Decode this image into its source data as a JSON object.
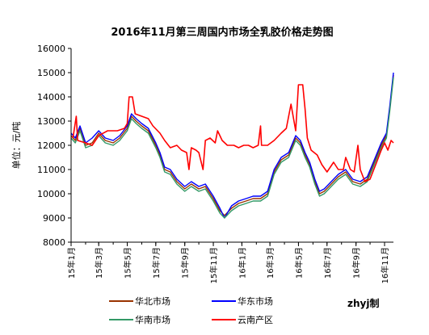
{
  "chart_data": {
    "type": "line",
    "title": "2016年11月第三周国内市场全乳胶价格走势图",
    "ylabel": "单位：元/吨",
    "xlabel": "",
    "ylim": [
      8000,
      16000
    ],
    "y_ticks": [
      "16000",
      "15000",
      "14000",
      "13000",
      "12000",
      "11000",
      "10000",
      "9000",
      "8000"
    ],
    "x_ticks": [
      "15年1月",
      "15年3月",
      "15年5月",
      "15年7月",
      "15年9月",
      "15年11月",
      "16年1月",
      "16年3月",
      "16年5月",
      "16年7月",
      "16年9月",
      "16年11月"
    ],
    "x_months": [
      "2015-01",
      "2015-03",
      "2015-05",
      "2015-07",
      "2015-09",
      "2015-11",
      "2016-01",
      "2016-03",
      "2016-05",
      "2016-07",
      "2016-09",
      "2016-11"
    ],
    "x_range": [
      "2015-01-01",
      "2016-11-20"
    ],
    "legend_position": "bottom",
    "watermark": "zhyj制",
    "grid": false,
    "series": [
      {
        "name": "华北市场",
        "color": "#993300",
        "points": [
          [
            "2015-01-01",
            12400
          ],
          [
            "2015-01-10",
            12200
          ],
          [
            "2015-01-20",
            12700
          ],
          [
            "2015-02-01",
            12000
          ],
          [
            "2015-02-15",
            12100
          ],
          [
            "2015-03-01",
            12500
          ],
          [
            "2015-03-15",
            12200
          ],
          [
            "2015-04-01",
            12100
          ],
          [
            "2015-04-15",
            12300
          ],
          [
            "2015-05-01",
            12700
          ],
          [
            "2015-05-10",
            13200
          ],
          [
            "2015-05-20",
            13000
          ],
          [
            "2015-06-01",
            12800
          ],
          [
            "2015-06-15",
            12600
          ],
          [
            "2015-07-01",
            12000
          ],
          [
            "2015-07-10",
            11600
          ],
          [
            "2015-07-20",
            11000
          ],
          [
            "2015-08-01",
            10900
          ],
          [
            "2015-08-15",
            10500
          ],
          [
            "2015-09-01",
            10200
          ],
          [
            "2015-09-15",
            10400
          ],
          [
            "2015-10-01",
            10200
          ],
          [
            "2015-10-15",
            10300
          ],
          [
            "2015-11-01",
            9800
          ],
          [
            "2015-11-15",
            9300
          ],
          [
            "2015-11-25",
            9100
          ],
          [
            "2015-12-10",
            9400
          ],
          [
            "2015-12-25",
            9600
          ],
          [
            "2016-01-10",
            9700
          ],
          [
            "2016-01-25",
            9800
          ],
          [
            "2016-02-10",
            9800
          ],
          [
            "2016-02-25",
            10000
          ],
          [
            "2016-03-10",
            10900
          ],
          [
            "2016-03-25",
            11400
          ],
          [
            "2016-04-10",
            11600
          ],
          [
            "2016-04-25",
            12300
          ],
          [
            "2016-05-05",
            12100
          ],
          [
            "2016-05-15",
            11600
          ],
          [
            "2016-05-25",
            11200
          ],
          [
            "2016-06-05",
            10500
          ],
          [
            "2016-06-15",
            10000
          ],
          [
            "2016-06-25",
            10100
          ],
          [
            "2016-07-10",
            10400
          ],
          [
            "2016-07-25",
            10700
          ],
          [
            "2016-08-10",
            10900
          ],
          [
            "2016-08-25",
            10500
          ],
          [
            "2016-09-10",
            10400
          ],
          [
            "2016-09-25",
            10600
          ],
          [
            "2016-10-10",
            11300
          ],
          [
            "2016-10-25",
            12000
          ],
          [
            "2016-11-05",
            12400
          ],
          [
            "2016-11-12",
            13500
          ],
          [
            "2016-11-20",
            14900
          ]
        ]
      },
      {
        "name": "华东市场",
        "color": "#0000ff",
        "points": [
          [
            "2015-01-01",
            12500
          ],
          [
            "2015-01-10",
            12300
          ],
          [
            "2015-01-20",
            12800
          ],
          [
            "2015-02-01",
            12100
          ],
          [
            "2015-02-15",
            12300
          ],
          [
            "2015-03-01",
            12600
          ],
          [
            "2015-03-15",
            12300
          ],
          [
            "2015-04-01",
            12200
          ],
          [
            "2015-04-15",
            12400
          ],
          [
            "2015-05-01",
            12800
          ],
          [
            "2015-05-10",
            13300
          ],
          [
            "2015-05-20",
            13100
          ],
          [
            "2015-06-01",
            12900
          ],
          [
            "2015-06-15",
            12700
          ],
          [
            "2015-07-01",
            12100
          ],
          [
            "2015-07-10",
            11700
          ],
          [
            "2015-07-20",
            11100
          ],
          [
            "2015-08-01",
            11000
          ],
          [
            "2015-08-15",
            10600
          ],
          [
            "2015-09-01",
            10300
          ],
          [
            "2015-09-15",
            10500
          ],
          [
            "2015-10-01",
            10300
          ],
          [
            "2015-10-15",
            10400
          ],
          [
            "2015-11-01",
            9900
          ],
          [
            "2015-11-15",
            9400
          ],
          [
            "2015-11-25",
            9000
          ],
          [
            "2015-12-10",
            9500
          ],
          [
            "2015-12-25",
            9700
          ],
          [
            "2016-01-10",
            9800
          ],
          [
            "2016-01-25",
            9900
          ],
          [
            "2016-02-10",
            9900
          ],
          [
            "2016-02-25",
            10100
          ],
          [
            "2016-03-10",
            11000
          ],
          [
            "2016-03-25",
            11500
          ],
          [
            "2016-04-10",
            11700
          ],
          [
            "2016-04-25",
            12400
          ],
          [
            "2016-05-05",
            12200
          ],
          [
            "2016-05-15",
            11700
          ],
          [
            "2016-05-25",
            11300
          ],
          [
            "2016-06-05",
            10600
          ],
          [
            "2016-06-15",
            10100
          ],
          [
            "2016-06-25",
            10200
          ],
          [
            "2016-07-10",
            10500
          ],
          [
            "2016-07-25",
            10800
          ],
          [
            "2016-08-10",
            11000
          ],
          [
            "2016-08-25",
            10600
          ],
          [
            "2016-09-10",
            10500
          ],
          [
            "2016-09-25",
            10700
          ],
          [
            "2016-10-10",
            11400
          ],
          [
            "2016-10-25",
            12100
          ],
          [
            "2016-11-05",
            12500
          ],
          [
            "2016-11-12",
            13600
          ],
          [
            "2016-11-20",
            15000
          ]
        ]
      },
      {
        "name": "华南市场",
        "color": "#339966",
        "points": [
          [
            "2015-01-01",
            12300
          ],
          [
            "2015-01-10",
            12100
          ],
          [
            "2015-01-20",
            12600
          ],
          [
            "2015-02-01",
            11900
          ],
          [
            "2015-02-15",
            12000
          ],
          [
            "2015-03-01",
            12400
          ],
          [
            "2015-03-15",
            12100
          ],
          [
            "2015-04-01",
            12000
          ],
          [
            "2015-04-15",
            12200
          ],
          [
            "2015-05-01",
            12600
          ],
          [
            "2015-05-10",
            13100
          ],
          [
            "2015-05-20",
            12900
          ],
          [
            "2015-06-01",
            12700
          ],
          [
            "2015-06-15",
            12500
          ],
          [
            "2015-07-01",
            11900
          ],
          [
            "2015-07-10",
            11500
          ],
          [
            "2015-07-20",
            10900
          ],
          [
            "2015-08-01",
            10800
          ],
          [
            "2015-08-15",
            10400
          ],
          [
            "2015-09-01",
            10100
          ],
          [
            "2015-09-15",
            10300
          ],
          [
            "2015-10-01",
            10100
          ],
          [
            "2015-10-15",
            10200
          ],
          [
            "2015-11-01",
            9700
          ],
          [
            "2015-11-15",
            9200
          ],
          [
            "2015-11-25",
            9000
          ],
          [
            "2015-12-10",
            9300
          ],
          [
            "2015-12-25",
            9500
          ],
          [
            "2016-01-10",
            9600
          ],
          [
            "2016-01-25",
            9700
          ],
          [
            "2016-02-10",
            9700
          ],
          [
            "2016-02-25",
            9900
          ],
          [
            "2016-03-10",
            10800
          ],
          [
            "2016-03-25",
            11300
          ],
          [
            "2016-04-10",
            11500
          ],
          [
            "2016-04-25",
            12200
          ],
          [
            "2016-05-05",
            12000
          ],
          [
            "2016-05-15",
            11500
          ],
          [
            "2016-05-25",
            11100
          ],
          [
            "2016-06-05",
            10400
          ],
          [
            "2016-06-15",
            9900
          ],
          [
            "2016-06-25",
            10000
          ],
          [
            "2016-07-10",
            10300
          ],
          [
            "2016-07-25",
            10600
          ],
          [
            "2016-08-10",
            10800
          ],
          [
            "2016-08-25",
            10400
          ],
          [
            "2016-09-10",
            10300
          ],
          [
            "2016-09-25",
            10500
          ],
          [
            "2016-10-10",
            11200
          ],
          [
            "2016-10-25",
            11900
          ],
          [
            "2016-11-05",
            12300
          ],
          [
            "2016-11-12",
            13400
          ],
          [
            "2016-11-20",
            14800
          ]
        ]
      },
      {
        "name": "云南产区",
        "color": "#ff0000",
        "points": [
          [
            "2015-01-05",
            12300
          ],
          [
            "2015-01-12",
            13200
          ],
          [
            "2015-01-15",
            12200
          ],
          [
            "2015-02-01",
            12100
          ],
          [
            "2015-02-15",
            12000
          ],
          [
            "2015-03-01",
            12400
          ],
          [
            "2015-03-20",
            12600
          ],
          [
            "2015-04-10",
            12600
          ],
          [
            "2015-04-25",
            12700
          ],
          [
            "2015-05-01",
            12900
          ],
          [
            "2015-05-05",
            14000
          ],
          [
            "2015-05-12",
            14000
          ],
          [
            "2015-05-18",
            13300
          ],
          [
            "2015-06-01",
            13200
          ],
          [
            "2015-06-15",
            13100
          ],
          [
            "2015-06-25",
            12800
          ],
          [
            "2015-07-10",
            12500
          ],
          [
            "2015-07-20",
            12200
          ],
          [
            "2015-08-01",
            11900
          ],
          [
            "2015-08-15",
            12000
          ],
          [
            "2015-08-25",
            11800
          ],
          [
            "2015-09-05",
            11700
          ],
          [
            "2015-09-10",
            11000
          ],
          [
            "2015-09-15",
            11900
          ],
          [
            "2015-09-25",
            11800
          ],
          [
            "2015-10-01",
            11700
          ],
          [
            "2015-10-10",
            11000
          ],
          [
            "2015-10-15",
            12200
          ],
          [
            "2015-10-25",
            12300
          ],
          [
            "2015-11-05",
            12100
          ],
          [
            "2015-11-10",
            12600
          ],
          [
            "2015-11-20",
            12200
          ],
          [
            "2015-12-01",
            12000
          ],
          [
            "2015-12-15",
            12000
          ],
          [
            "2015-12-25",
            11900
          ],
          [
            "2016-01-05",
            12000
          ],
          [
            "2016-01-15",
            12000
          ],
          [
            "2016-01-25",
            11900
          ],
          [
            "2016-02-05",
            12000
          ],
          [
            "2016-02-10",
            12800
          ],
          [
            "2016-02-12",
            12000
          ],
          [
            "2016-02-25",
            12000
          ],
          [
            "2016-03-10",
            12200
          ],
          [
            "2016-03-25",
            12500
          ],
          [
            "2016-04-05",
            12700
          ],
          [
            "2016-04-15",
            13700
          ],
          [
            "2016-04-25",
            12600
          ],
          [
            "2016-05-01",
            14500
          ],
          [
            "2016-05-10",
            14500
          ],
          [
            "2016-05-15",
            13500
          ],
          [
            "2016-05-20",
            12300
          ],
          [
            "2016-05-28",
            11800
          ],
          [
            "2016-06-10",
            11600
          ],
          [
            "2016-06-20",
            11200
          ],
          [
            "2016-07-01",
            10900
          ],
          [
            "2016-07-15",
            11300
          ],
          [
            "2016-07-25",
            11000
          ],
          [
            "2016-08-05",
            11000
          ],
          [
            "2016-08-10",
            11500
          ],
          [
            "2016-08-20",
            11000
          ],
          [
            "2016-08-28",
            10900
          ],
          [
            "2016-09-05",
            12000
          ],
          [
            "2016-09-10",
            11000
          ],
          [
            "2016-09-20",
            10500
          ],
          [
            "2016-10-01",
            10600
          ],
          [
            "2016-10-15",
            11300
          ],
          [
            "2016-10-25",
            11800
          ],
          [
            "2016-11-01",
            12100
          ],
          [
            "2016-11-08",
            11800
          ],
          [
            "2016-11-15",
            12200
          ],
          [
            "2016-11-20",
            12100
          ]
        ]
      }
    ]
  }
}
